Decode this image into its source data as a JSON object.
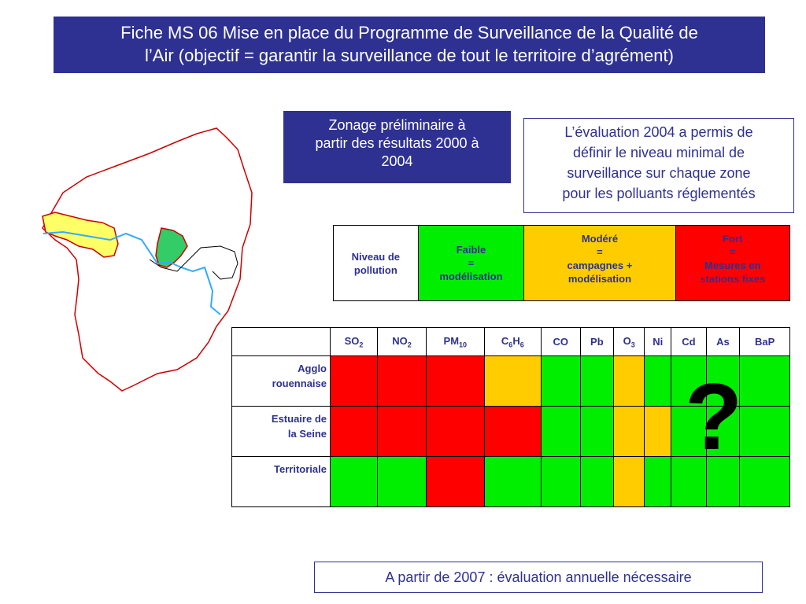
{
  "title": {
    "line1": "Fiche MS 06 Mise en place du Programme de Surveillance de la Qualité de",
    "line2": "l’Air (objectif = garantir la surveillance de tout le territoire d’agrément)"
  },
  "zonage": {
    "line1": "Zonage préliminaire à",
    "line2": "partir des résultats 2000 à",
    "line3": "2004"
  },
  "evaluation": {
    "line1": "L’évaluation 2004 a permis de",
    "line2": "définir le niveau minimal de",
    "line3": "surveillance sur chaque zone",
    "line4": "pour les polluants réglementés"
  },
  "legend": {
    "header": [
      "Niveau de",
      "pollution"
    ],
    "faible": [
      "Faible",
      "=",
      "modélisation"
    ],
    "modere": [
      "Modéré",
      "=",
      "campagnes +",
      "modélisation"
    ],
    "fort": [
      "Fort",
      "=",
      "Mesures en",
      "stations fixes"
    ],
    "colors": {
      "faible": "#00ee00",
      "modere": "#ffcc00",
      "fort": "#ff0000"
    }
  },
  "pollutants": [
    {
      "base": "SO",
      "sub": "2"
    },
    {
      "base": "NO",
      "sub": "2"
    },
    {
      "base": "PM",
      "sub": "10"
    },
    {
      "base": "C",
      "sub": "6",
      "base2": "H",
      "sub2": "6"
    },
    {
      "base": "CO"
    },
    {
      "base": "Pb"
    },
    {
      "base": "O",
      "sub": "3"
    },
    {
      "base": "Ni"
    },
    {
      "base": "Cd"
    },
    {
      "base": "As"
    },
    {
      "base": "BaP"
    }
  ],
  "zones": [
    {
      "label": [
        "Agglo",
        "rouennaise"
      ],
      "levels": [
        "fort",
        "fort",
        "fort",
        "modere",
        "faible",
        "faible",
        "modere",
        "faible",
        "faible",
        "faible",
        "faible"
      ]
    },
    {
      "label": [
        "Estuaire de",
        "la Seine"
      ],
      "levels": [
        "fort",
        "fort",
        "fort",
        "fort",
        "faible",
        "faible",
        "modere",
        "modere",
        "faible",
        "faible",
        "faible"
      ]
    },
    {
      "label": [
        "Territoriale"
      ],
      "levels": [
        "faible",
        "faible",
        "fort",
        "faible",
        "faible",
        "faible",
        "modere",
        "faible",
        "faible",
        "faible",
        "faible"
      ]
    }
  ],
  "question_mark": "?",
  "bottom_note": "A partir de 2007 : évaluation annuelle nécessaire"
}
